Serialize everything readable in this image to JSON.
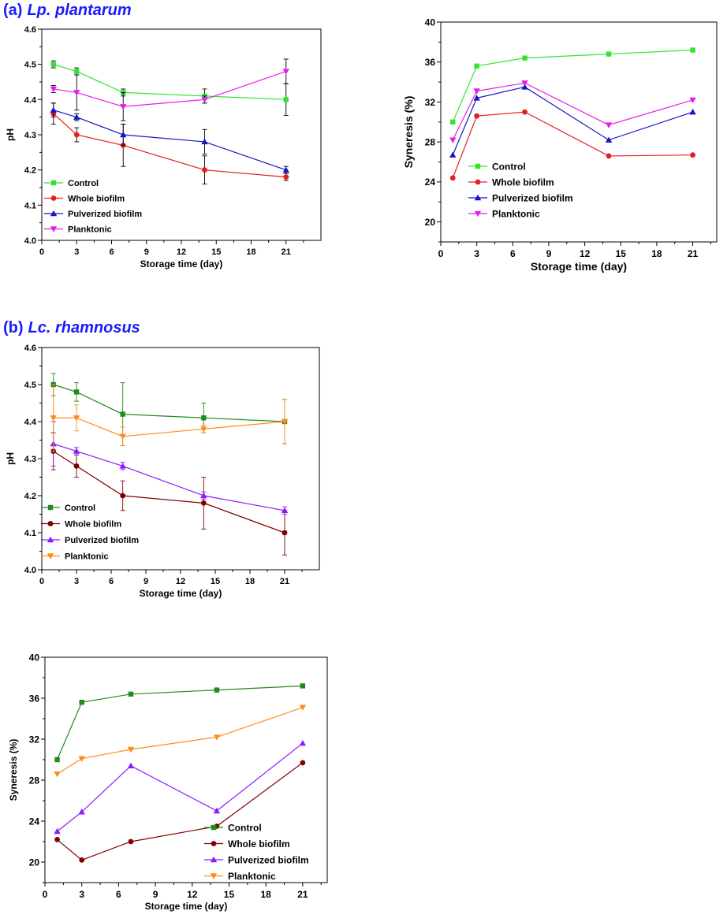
{
  "panels": [
    {
      "tag": "(a)",
      "species": "Lp. plantarum"
    },
    {
      "tag": "(b)",
      "species": "Lc. rhamnosus"
    }
  ],
  "colors": {
    "a": {
      "Control": "#2fe52f",
      "Whole biofilm": "#e61e1e",
      "Pulverized biofilm": "#1616c8",
      "Planktonic": "#e51ee5"
    },
    "b": {
      "Control": "#1f8a1f",
      "Whole biofilm": "#800000",
      "Pulverized biofilm": "#8c1aff",
      "Planktonic": "#ff8c1a"
    }
  },
  "chart_data": [
    {
      "id": "a-ph",
      "type": "line",
      "panel": "a",
      "title": "",
      "xlabel": "Storage time (day)",
      "ylabel": "pH",
      "xlim": [
        0,
        24
      ],
      "ylim": [
        4.0,
        4.6
      ],
      "xticks": [
        0,
        3,
        6,
        9,
        12,
        15,
        18,
        21
      ],
      "yticks": [
        4.0,
        4.1,
        4.2,
        4.3,
        4.4,
        4.5,
        4.6
      ],
      "ydecimals": 1,
      "legend": "bottom-left",
      "x": [
        1,
        3,
        7,
        14,
        21
      ],
      "series": [
        {
          "name": "Control",
          "marker": "square",
          "values": [
            4.5,
            4.48,
            4.42,
            4.41,
            4.4
          ],
          "errors": [
            0.01,
            0.01,
            0.01,
            0.02,
            0.045
          ]
        },
        {
          "name": "Whole biofilm",
          "marker": "circle",
          "values": [
            4.36,
            4.3,
            4.27,
            4.2,
            4.18
          ],
          "errors": [
            0.03,
            0.02,
            0.06,
            0.04,
            0.01
          ]
        },
        {
          "name": "Pulverized biofilm",
          "marker": "triangle-up",
          "values": [
            4.37,
            4.35,
            4.3,
            4.28,
            4.2
          ],
          "errors": [
            0.02,
            0.01,
            0.03,
            0.035,
            0.01
          ]
        },
        {
          "name": "Planktonic",
          "marker": "triangle-down",
          "values": [
            4.43,
            4.42,
            4.38,
            4.4,
            4.48
          ],
          "errors": [
            0.01,
            0.05,
            0.04,
            0.01,
            0.035
          ]
        }
      ]
    },
    {
      "id": "a-syn",
      "type": "line",
      "panel": "a",
      "title": "",
      "xlabel": "Storage time (day)",
      "ylabel": "Syneresis (%)",
      "xlim": [
        0,
        23
      ],
      "ylim": [
        18,
        40
      ],
      "xticks": [
        0,
        3,
        6,
        9,
        12,
        15,
        18,
        21
      ],
      "yticks": [
        20,
        24,
        28,
        32,
        36,
        40
      ],
      "ydecimals": 0,
      "legend": "center-left",
      "x": [
        1,
        3,
        7,
        14,
        21
      ],
      "series": [
        {
          "name": "Control",
          "marker": "square",
          "values": [
            30.0,
            35.6,
            36.4,
            36.8,
            37.2
          ]
        },
        {
          "name": "Whole biofilm",
          "marker": "circle",
          "values": [
            24.4,
            30.6,
            31.0,
            26.6,
            26.7
          ]
        },
        {
          "name": "Pulverized biofilm",
          "marker": "triangle-up",
          "values": [
            26.7,
            32.4,
            33.5,
            28.2,
            31.0
          ]
        },
        {
          "name": "Planktonic",
          "marker": "triangle-down",
          "values": [
            28.2,
            33.1,
            33.9,
            29.7,
            32.2
          ]
        }
      ]
    },
    {
      "id": "b-ph",
      "type": "line",
      "panel": "b",
      "title": "",
      "xlabel": "Storage time (day)",
      "ylabel": "pH",
      "xlim": [
        0,
        24
      ],
      "ylim": [
        4.0,
        4.6
      ],
      "xticks": [
        0,
        3,
        6,
        9,
        12,
        15,
        18,
        21
      ],
      "yticks": [
        4.0,
        4.1,
        4.2,
        4.3,
        4.4,
        4.5,
        4.6
      ],
      "ydecimals": 1,
      "legend": "bottom-left",
      "x": [
        1,
        3,
        7,
        14,
        21
      ],
      "series": [
        {
          "name": "Control",
          "marker": "square",
          "values": [
            4.5,
            4.48,
            4.42,
            4.41,
            4.4
          ],
          "errors": [
            0.03,
            0.025,
            0.085,
            0.04,
            0.06
          ]
        },
        {
          "name": "Whole biofilm",
          "marker": "circle",
          "values": [
            4.32,
            4.28,
            4.2,
            4.18,
            4.1
          ],
          "errors": [
            0.05,
            0.03,
            0.04,
            0.07,
            0.06
          ]
        },
        {
          "name": "Pulverized biofilm",
          "marker": "triangle-up",
          "values": [
            4.34,
            4.32,
            4.28,
            4.2,
            4.16
          ],
          "errors": [
            0.06,
            0.01,
            0.01,
            0.01,
            0.01
          ]
        },
        {
          "name": "Planktonic",
          "marker": "triangle-down",
          "values": [
            4.41,
            4.41,
            4.36,
            4.38,
            4.4
          ],
          "errors": [
            0.09,
            0.035,
            0.025,
            0.01,
            0.06
          ]
        }
      ]
    },
    {
      "id": "b-syn",
      "type": "line",
      "panel": "b",
      "title": "",
      "xlabel": "Storage time (day)",
      "ylabel": "Syneresis (%)",
      "xlim": [
        0,
        23
      ],
      "ylim": [
        18,
        40
      ],
      "xticks": [
        0,
        3,
        6,
        9,
        12,
        15,
        18,
        21
      ],
      "yticks": [
        20,
        24,
        28,
        32,
        36,
        40
      ],
      "ydecimals": 0,
      "legend": "bottom-right",
      "x": [
        1,
        3,
        7,
        14,
        21
      ],
      "series": [
        {
          "name": "Control",
          "marker": "square",
          "values": [
            30.0,
            35.6,
            36.4,
            36.8,
            37.2
          ]
        },
        {
          "name": "Whole biofilm",
          "marker": "circle",
          "values": [
            22.2,
            20.2,
            22.0,
            23.5,
            29.7
          ]
        },
        {
          "name": "Pulverized biofilm",
          "marker": "triangle-up",
          "values": [
            23.0,
            24.9,
            29.4,
            25.0,
            31.6
          ]
        },
        {
          "name": "Planktonic",
          "marker": "triangle-down",
          "values": [
            28.6,
            30.1,
            31.0,
            32.2,
            35.1
          ]
        }
      ]
    }
  ]
}
